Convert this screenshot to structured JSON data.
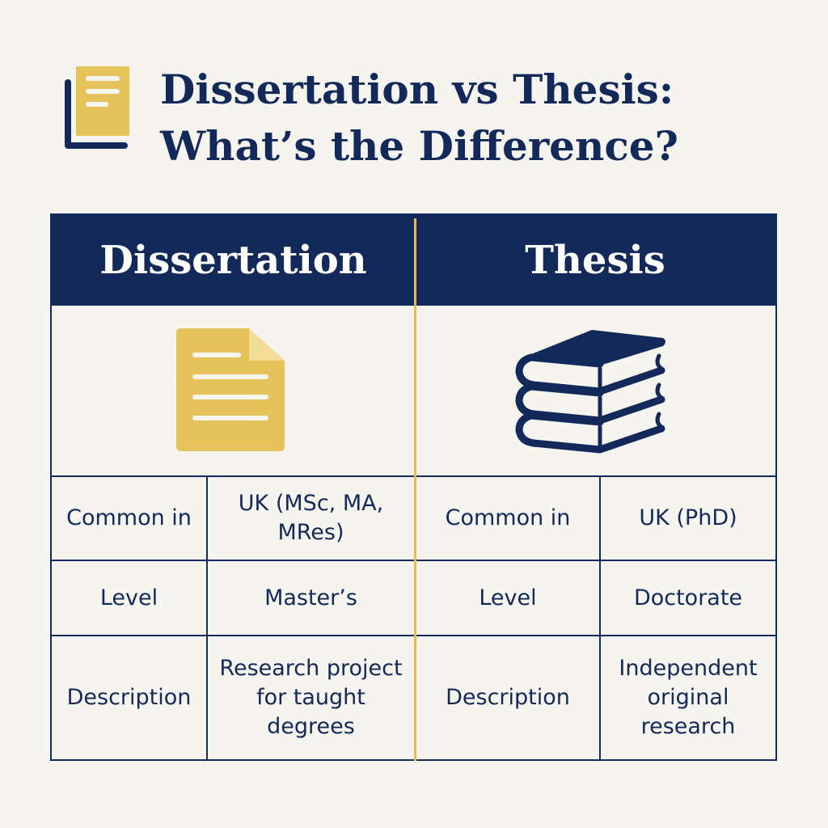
{
  "title": {
    "line1": "Dissertation vs Thesis:",
    "line2": "What’s the Difference?",
    "icon": "document-stack-icon"
  },
  "colors": {
    "navy": "#12295a",
    "gold": "#e6c25a",
    "background": "#f6f4ef"
  },
  "columns": [
    {
      "header": "Dissertation",
      "icon": "document-icon",
      "rows": [
        {
          "label": "Common in",
          "value": "UK (MSc, MA, MRes)"
        },
        {
          "label": "Level",
          "value": "Master’s"
        },
        {
          "label": "Description",
          "value": "Research project for taught degrees"
        }
      ]
    },
    {
      "header": "Thesis",
      "icon": "books-icon",
      "rows": [
        {
          "label": "Common in",
          "value": "UK (PhD)"
        },
        {
          "label": "Level",
          "value": "Doctorate"
        },
        {
          "label": "Description",
          "value": "Independent original research"
        }
      ]
    }
  ]
}
